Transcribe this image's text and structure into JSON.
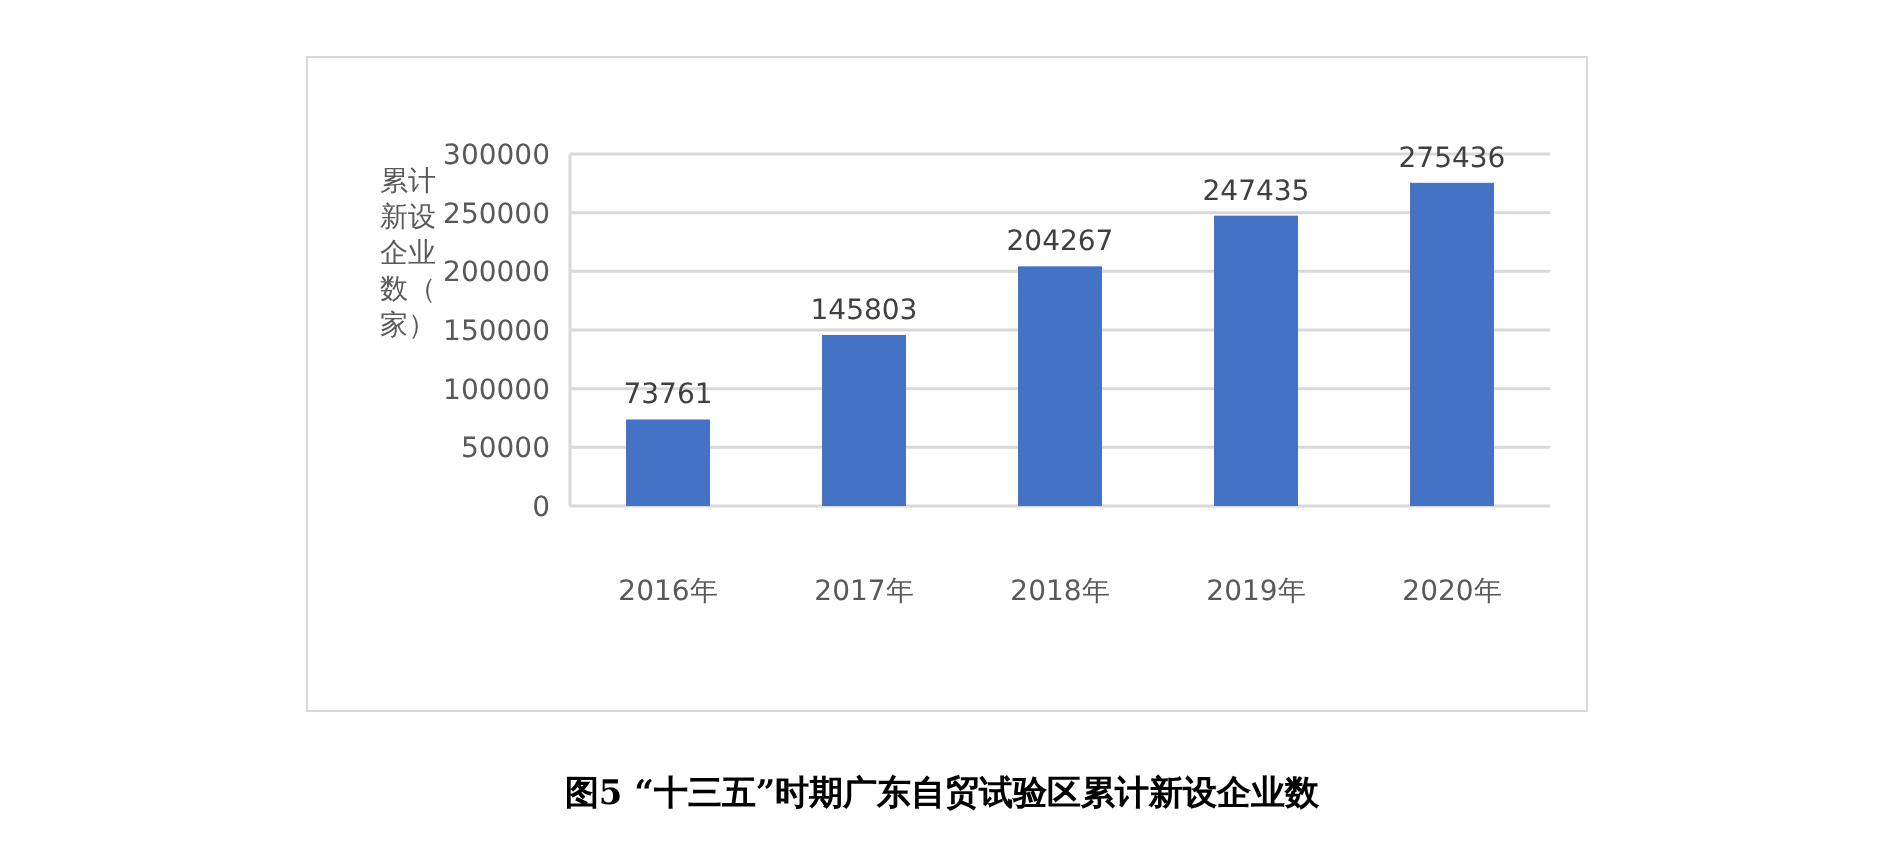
{
  "chart_data": {
    "type": "bar",
    "title": "图5 “十三五”时期广东自贸试验区累计新设企业数",
    "ylabel": "累计新设企业数（家）",
    "categories": [
      "2016年",
      "2017年",
      "2018年",
      "2019年",
      "2020年"
    ],
    "values": [
      73761,
      145803,
      204267,
      247435,
      275436
    ],
    "color": "#4472c4",
    "ylim": [
      0,
      300000
    ],
    "yticks": [
      0,
      50000,
      100000,
      150000,
      200000,
      250000,
      300000
    ],
    "grid": "y",
    "data_labels": true
  }
}
